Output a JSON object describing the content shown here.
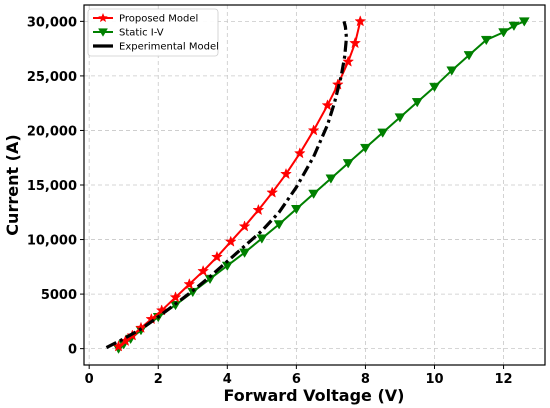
{
  "chart_data": {
    "type": "line",
    "xlabel": "Forward Voltage (V)",
    "ylabel": "Current (A)",
    "xlim": [
      -0.15,
      13.2
    ],
    "ylim": [
      -1500,
      31500
    ],
    "xticks": [
      0,
      2,
      4,
      6,
      8,
      10,
      12
    ],
    "yticks": [
      0,
      5000,
      10000,
      15000,
      20000,
      25000,
      30000
    ],
    "xtick_labels": [
      "0",
      "2",
      "4",
      "6",
      "8",
      "10",
      "12"
    ],
    "ytick_labels": [
      "0",
      "5000",
      "10,000",
      "15,000",
      "20,000",
      "25,000",
      "30,000"
    ],
    "grid": true,
    "legend_position": "top-left",
    "series": [
      {
        "name": "Proposed Model",
        "color": "#ff0000",
        "marker": "star",
        "style": "solid",
        "x": [
          0.85,
          1.05,
          1.25,
          1.5,
          1.8,
          2.1,
          2.5,
          2.9,
          3.3,
          3.7,
          4.1,
          4.5,
          4.9,
          5.3,
          5.7,
          6.1,
          6.5,
          6.9,
          7.2,
          7.5,
          7.7,
          7.85
        ],
        "y": [
          200,
          700,
          1200,
          1900,
          2700,
          3500,
          4700,
          5900,
          7100,
          8400,
          9800,
          11200,
          12700,
          14300,
          16000,
          17900,
          20000,
          22300,
          24200,
          26300,
          28000,
          30000
        ]
      },
      {
        "name": "Static I-V",
        "color": "#008000",
        "marker": "triangle-down",
        "style": "solid",
        "x": [
          0.85,
          1.0,
          1.2,
          1.5,
          2.0,
          2.5,
          3.0,
          3.5,
          4.0,
          4.5,
          5.0,
          5.5,
          6.0,
          6.5,
          7.0,
          7.5,
          8.0,
          8.5,
          9.0,
          9.5,
          10.0,
          10.5,
          11.0,
          11.5,
          12.0,
          12.3,
          12.6
        ],
        "y": [
          0,
          400,
          900,
          1700,
          2900,
          4000,
          5200,
          6400,
          7600,
          8800,
          10100,
          11400,
          12800,
          14200,
          15600,
          17000,
          18400,
          19800,
          21200,
          22600,
          24000,
          25500,
          26900,
          28300,
          29000,
          29600,
          30000
        ]
      },
      {
        "name": "Experimental Model",
        "color": "#000000",
        "marker": "none",
        "style": "dashdot",
        "x": [
          0.5,
          1.0,
          1.5,
          2.0,
          2.5,
          3.0,
          3.5,
          4.0,
          4.5,
          5.0,
          5.5,
          6.0,
          6.5,
          6.9,
          7.1,
          7.3,
          7.4,
          7.45,
          7.42,
          7.38
        ],
        "y": [
          100,
          900,
          1800,
          2900,
          4100,
          5300,
          6600,
          8000,
          9400,
          10800,
          12500,
          14800,
          17600,
          20500,
          22500,
          25000,
          26800,
          28500,
          29500,
          30000
        ]
      }
    ]
  }
}
